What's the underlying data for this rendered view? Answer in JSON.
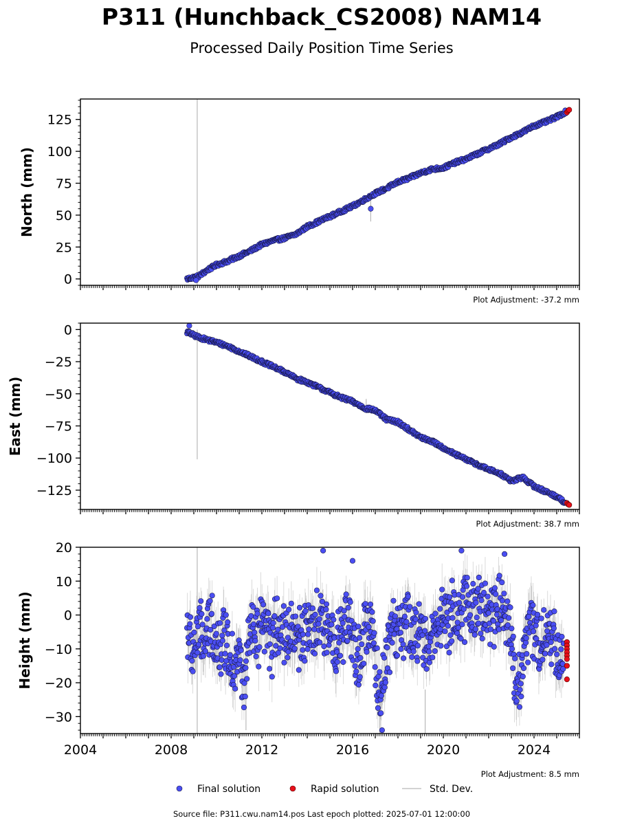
{
  "title": "P311 (Hunchback_CS2008) NAM14",
  "subtitle": "Processed Daily Position Time Series",
  "legend": {
    "final": "Final solution",
    "rapid": "Rapid solution",
    "std": "Std. Dev."
  },
  "footer": "Source file: P311.cwu.nam14.pos  Last epoch plotted: 2025-07-01 12:00:00",
  "colors": {
    "final": "#4a4ef2",
    "rapid": "#e8101a",
    "std": "#b8b8b8"
  },
  "chart_data": [
    {
      "type": "scatter",
      "ylabel": "North (mm)",
      "adjustment": "Plot Adjustment: -37.2 mm",
      "xlim": [
        2004,
        2026
      ],
      "ylim": [
        -5,
        141
      ],
      "yticks": [
        0,
        25,
        50,
        75,
        100,
        125
      ],
      "ytick_labels": [
        "0",
        "25",
        "50",
        "75",
        "100",
        "125"
      ],
      "xtick_labels_shown": false,
      "final_series": {
        "name": "Final solution",
        "x": [
          2008.7,
          2009.2,
          2009.6,
          2010.0,
          2010.5,
          2011.0,
          2011.5,
          2012.0,
          2012.5,
          2013.0,
          2013.5,
          2014.0,
          2014.5,
          2015.0,
          2015.5,
          2016.0,
          2016.5,
          2017.0,
          2017.5,
          2018.0,
          2018.5,
          2019.0,
          2019.5,
          2020.0,
          2020.5,
          2021.0,
          2021.5,
          2022.0,
          2022.5,
          2023.0,
          2023.5,
          2024.0,
          2024.5,
          2025.0,
          2025.4
        ],
        "y": [
          0,
          2,
          7,
          11,
          14,
          18,
          22,
          27,
          30,
          32,
          35,
          41,
          45,
          49,
          53,
          57,
          62,
          67,
          71,
          76,
          79,
          83,
          86,
          87,
          91,
          94,
          98,
          102,
          106,
          111,
          115,
          120,
          123,
          127,
          131
        ]
      },
      "rapid_series": {
        "name": "Rapid solution",
        "x": [
          2025.45,
          2025.5,
          2025.55
        ],
        "y": [
          130.5,
          131.8,
          132.5
        ]
      },
      "outliers": [
        {
          "x": 2009.1,
          "y": -1
        },
        {
          "x": 2016.8,
          "y": 55
        }
      ],
      "stddev_spikes": [
        {
          "x": 2009.15,
          "y_low": -5,
          "y_high": 141
        },
        {
          "x": 2016.8,
          "y_low": 45,
          "y_high": 62
        }
      ]
    },
    {
      "type": "scatter",
      "ylabel": "East (mm)",
      "adjustment": "Plot Adjustment: 38.7 mm",
      "xlim": [
        2004,
        2026
      ],
      "ylim": [
        -140,
        5
      ],
      "yticks": [
        0,
        -25,
        -50,
        -75,
        -100,
        -125
      ],
      "ytick_labels": [
        "0",
        "−25",
        "−50",
        "−75",
        "−100",
        "−125"
      ],
      "xtick_labels_shown": false,
      "final_series": {
        "name": "Final solution",
        "x": [
          2008.7,
          2009.2,
          2009.6,
          2010.0,
          2010.5,
          2011.0,
          2011.5,
          2012.0,
          2012.5,
          2013.0,
          2013.5,
          2014.0,
          2014.5,
          2015.0,
          2015.5,
          2016.0,
          2016.5,
          2017.0,
          2017.5,
          2018.0,
          2018.5,
          2019.0,
          2019.5,
          2020.0,
          2020.5,
          2021.0,
          2021.5,
          2022.0,
          2022.5,
          2023.0,
          2023.5,
          2024.0,
          2024.5,
          2025.0,
          2025.4
        ],
        "y": [
          -2,
          -6,
          -8,
          -10,
          -13,
          -17,
          -21,
          -25,
          -29,
          -33,
          -38,
          -41,
          -45,
          -49,
          -53,
          -56,
          -61,
          -63,
          -70,
          -72,
          -78,
          -84,
          -87,
          -92,
          -97,
          -101,
          -105,
          -109,
          -112,
          -118,
          -115,
          -122,
          -126,
          -130,
          -135
        ]
      },
      "rapid_series": {
        "name": "Rapid solution",
        "x": [
          2025.45,
          2025.5,
          2025.55
        ],
        "y": [
          -135,
          -136,
          -136.5
        ]
      },
      "outliers": [
        {
          "x": 2008.8,
          "y": 3
        }
      ],
      "stddev_spikes": [
        {
          "x": 2009.15,
          "y_low": -101,
          "y_high": 0
        },
        {
          "x": 2016.6,
          "y_low": -65,
          "y_high": -54
        }
      ]
    },
    {
      "type": "scatter",
      "ylabel": "Height (mm)",
      "adjustment": "Plot Adjustment: 8.5 mm",
      "xlim": [
        2004,
        2026
      ],
      "ylim": [
        -35,
        20
      ],
      "yticks": [
        20,
        10,
        0,
        -10,
        -20,
        -30
      ],
      "ytick_labels": [
        "20",
        "10",
        "0",
        "−10",
        "−20",
        "−30"
      ],
      "xticks": [
        2004,
        2008,
        2012,
        2016,
        2020,
        2024
      ],
      "xtick_labels": [
        "2004",
        "2008",
        "2012",
        "2016",
        "2020",
        "2024"
      ],
      "xtick_labels_shown": true,
      "final_series": {
        "name": "Final solution",
        "x": [
          2008.7,
          2008.9,
          2009.2,
          2009.5,
          2009.8,
          2010.1,
          2010.4,
          2010.7,
          2011.0,
          2011.2,
          2011.5,
          2011.8,
          2012.1,
          2012.4,
          2012.7,
          2013.0,
          2013.3,
          2013.6,
          2013.9,
          2014.2,
          2014.5,
          2014.8,
          2015.1,
          2015.4,
          2015.7,
          2016.0,
          2016.3,
          2016.6,
          2016.9,
          2017.2,
          2017.5,
          2017.8,
          2018.1,
          2018.4,
          2018.7,
          2019.0,
          2019.3,
          2019.6,
          2019.9,
          2020.2,
          2020.5,
          2020.8,
          2021.1,
          2021.4,
          2021.7,
          2022.0,
          2022.3,
          2022.6,
          2022.9,
          2023.2,
          2023.5,
          2023.8,
          2024.1,
          2024.4,
          2024.7,
          2025.0,
          2025.3
        ],
        "y": [
          -3,
          -12,
          -5,
          -8,
          -2,
          -10,
          -6,
          -14,
          -12,
          -22,
          -5,
          -8,
          -3,
          -10,
          -1,
          -6,
          -4,
          -8,
          -3,
          -7,
          -2,
          -5,
          -4,
          -9,
          -1,
          -8,
          -14,
          -3,
          -6,
          -26,
          -10,
          -3,
          -6,
          -2,
          -8,
          -1,
          -12,
          -4,
          0,
          -2,
          2,
          -1,
          4,
          1,
          3,
          -1,
          2,
          5,
          -3,
          -22,
          -14,
          -3,
          -6,
          -8,
          -4,
          -10,
          -14
        ]
      },
      "rapid_series": {
        "name": "Rapid solution",
        "x": [
          2025.45,
          2025.45,
          2025.45,
          2025.45,
          2025.45,
          2025.45,
          2025.45,
          2025.45
        ],
        "y": [
          -8,
          -9,
          -10,
          -11,
          -12,
          -13,
          -15,
          -19
        ]
      },
      "outliers": [
        {
          "x": 2014.7,
          "y": 19
        },
        {
          "x": 2016.0,
          "y": 16
        },
        {
          "x": 2017.3,
          "y": -34
        },
        {
          "x": 2020.8,
          "y": 19
        },
        {
          "x": 2022.7,
          "y": 18
        }
      ],
      "stddev_spikes": [
        {
          "x": 2009.15,
          "y_low": -35,
          "y_high": 20
        },
        {
          "x": 2011.3,
          "y_low": -34,
          "y_high": -18
        },
        {
          "x": 2017.2,
          "y_low": -35,
          "y_high": -20
        },
        {
          "x": 2019.2,
          "y_low": -35,
          "y_high": -22
        }
      ]
    }
  ]
}
